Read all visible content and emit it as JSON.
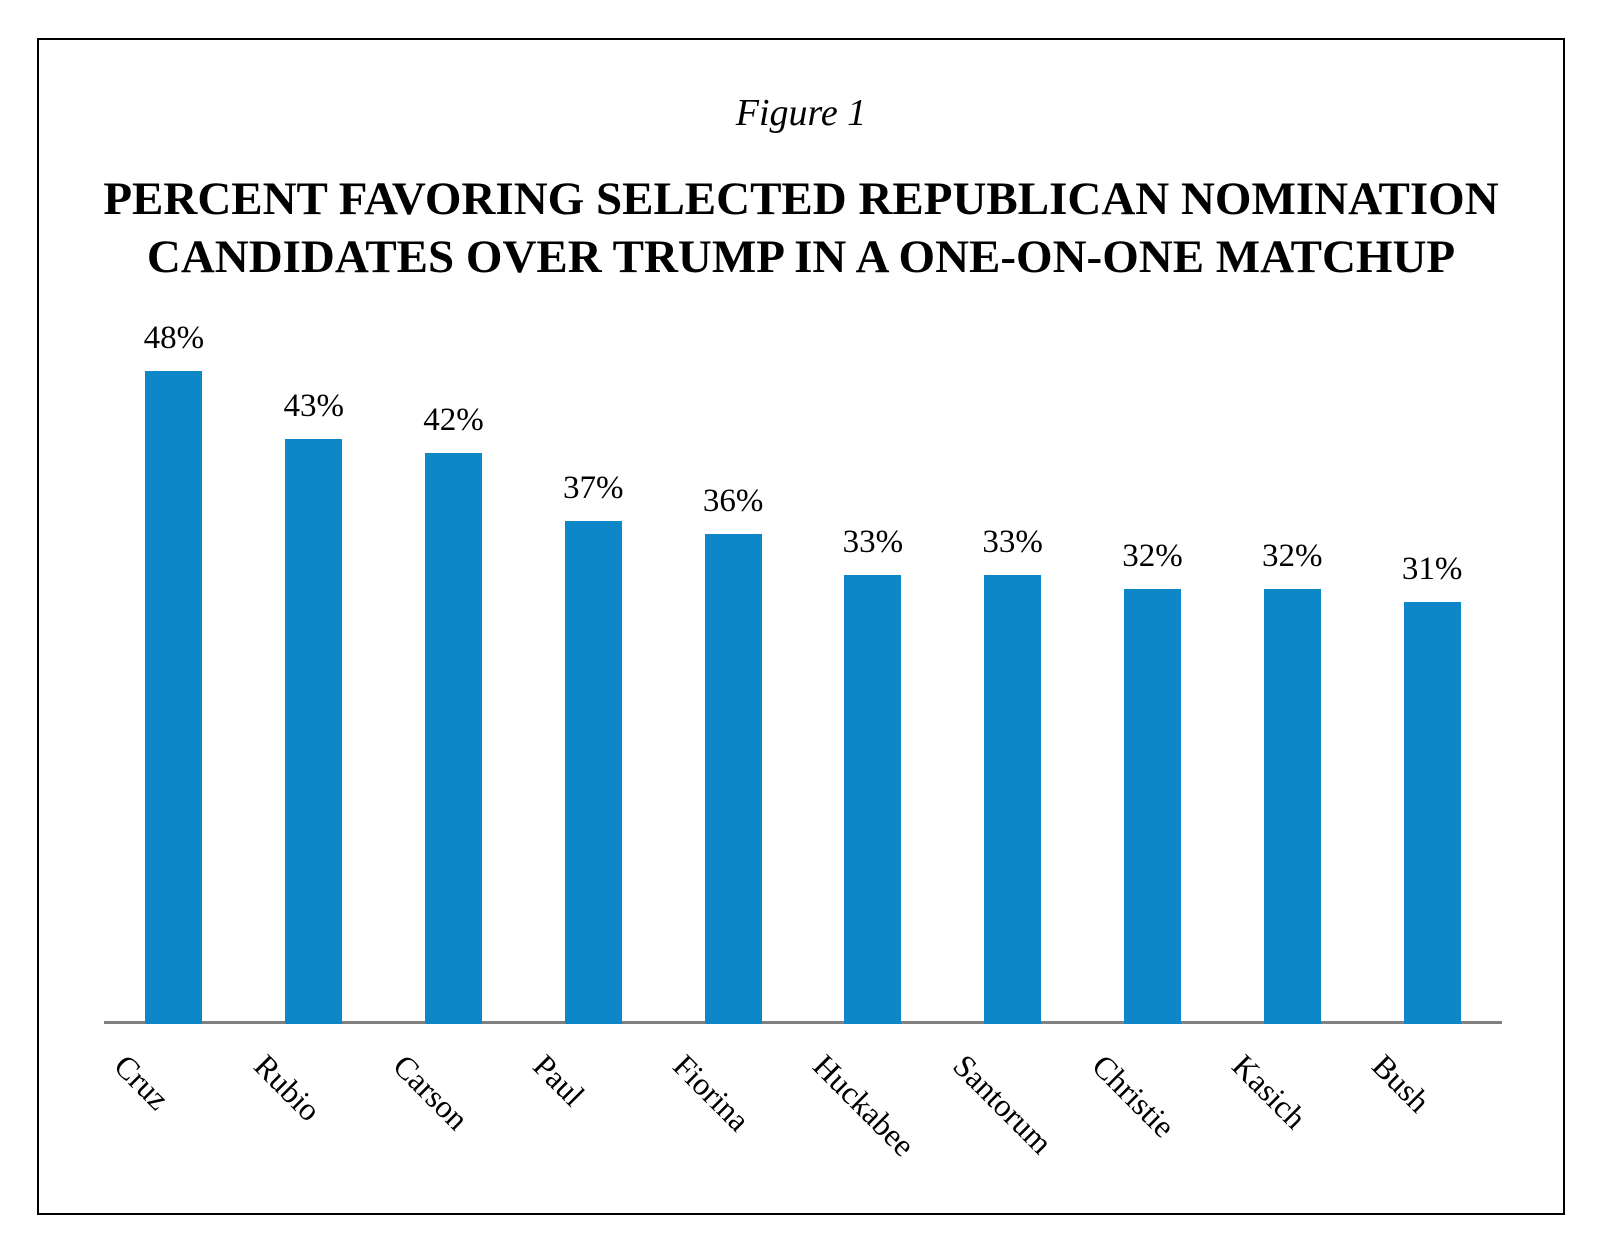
{
  "figure": {
    "label": "Figure 1",
    "title_line1": "PERCENT FAVORING SELECTED REPUBLICAN NOMINATION",
    "title_line2": "CANDIDATES OVER TRUMP IN A ONE-ON-ONE MATCHUP"
  },
  "chart_data": {
    "type": "bar",
    "title": "PERCENT FAVORING SELECTED REPUBLICAN NOMINATION CANDIDATES OVER TRUMP IN A ONE-ON-ONE MATCHUP",
    "figure_label": "Figure 1",
    "categories": [
      "Cruz",
      "Rubio",
      "Carson",
      "Paul",
      "Fiorina",
      "Huckabee",
      "Santorum",
      "Christie",
      "Kasich",
      "Bush"
    ],
    "values": [
      48,
      43,
      42,
      37,
      36,
      33,
      33,
      32,
      32,
      31
    ],
    "value_labels": [
      "48%",
      "43%",
      "42%",
      "37%",
      "36%",
      "33%",
      "33%",
      "32%",
      "32%",
      "31%"
    ],
    "xlabel": "",
    "ylabel": "",
    "ylim": [
      0,
      50
    ],
    "grid": false,
    "legend": false,
    "bar_color": "#0d87c8",
    "axis_color": "#808080",
    "x_tick_rotation_deg": 45
  }
}
